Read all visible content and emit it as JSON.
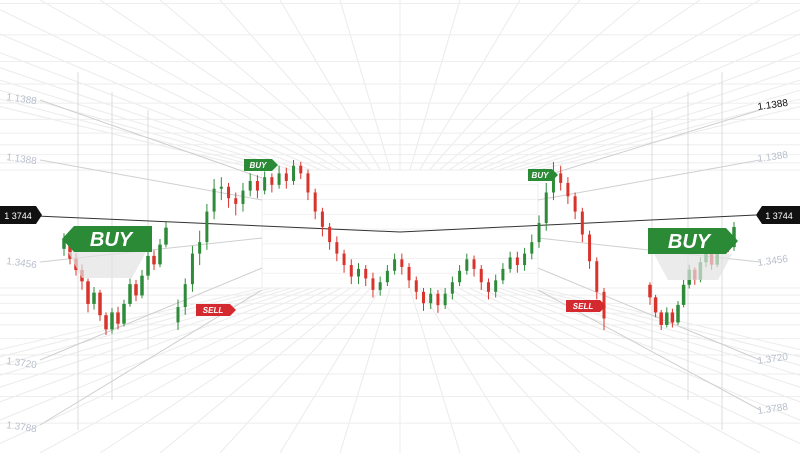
{
  "chart_data": {
    "type": "candlestick",
    "price_labels_left": [
      "1.1388",
      "1.1388",
      "1.3456",
      "1.3720",
      "1.3788"
    ],
    "price_labels_right": [
      "1.1388",
      "1.1388",
      "1.3456",
      "1.3720",
      "1.3788"
    ],
    "current_price_label": "1 3744",
    "colors": {
      "up": "#2e8b3a",
      "down": "#d8342c",
      "buy": "#2a8a36",
      "sell": "#d42a2f",
      "grid": "#e6e6e6",
      "tag": "#111111"
    },
    "signals": [
      {
        "type": "BUY",
        "size": "large",
        "side": "left"
      },
      {
        "type": "BUY",
        "size": "small",
        "side": "center-left"
      },
      {
        "type": "SELL",
        "size": "small",
        "side": "center-left"
      },
      {
        "type": "BUY",
        "size": "small",
        "side": "center-right"
      },
      {
        "type": "SELL",
        "size": "small",
        "side": "center-right"
      },
      {
        "type": "BUY",
        "size": "large",
        "side": "right"
      }
    ],
    "series_mid": [
      [
        1.31,
        1.318,
        1.306,
        1.322
      ],
      [
        1.318,
        1.33,
        1.314,
        1.333
      ],
      [
        1.33,
        1.346,
        1.326,
        1.35
      ],
      [
        1.346,
        1.352,
        1.34,
        1.358
      ],
      [
        1.352,
        1.368,
        1.348,
        1.372
      ],
      [
        1.368,
        1.38,
        1.364,
        1.385
      ],
      [
        1.38,
        1.381,
        1.374,
        1.386
      ],
      [
        1.381,
        1.375,
        1.37,
        1.383
      ],
      [
        1.375,
        1.372,
        1.366,
        1.378
      ],
      [
        1.372,
        1.379,
        1.368,
        1.383
      ],
      [
        1.379,
        1.384,
        1.376,
        1.388
      ],
      [
        1.384,
        1.379,
        1.375,
        1.387
      ],
      [
        1.379,
        1.386,
        1.377,
        1.389
      ],
      [
        1.386,
        1.382,
        1.378,
        1.388
      ],
      [
        1.382,
        1.388,
        1.38,
        1.392
      ],
      [
        1.388,
        1.384,
        1.38,
        1.391
      ],
      [
        1.384,
        1.392,
        1.382,
        1.395
      ],
      [
        1.392,
        1.388,
        1.385,
        1.394
      ],
      [
        1.388,
        1.378,
        1.374,
        1.39
      ],
      [
        1.378,
        1.368,
        1.364,
        1.38
      ],
      [
        1.368,
        1.36,
        1.355,
        1.37
      ],
      [
        1.36,
        1.352,
        1.348,
        1.362
      ],
      [
        1.352,
        1.346,
        1.342,
        1.355
      ],
      [
        1.346,
        1.34,
        1.336,
        1.348
      ],
      [
        1.34,
        1.334,
        1.33,
        1.343
      ],
      [
        1.334,
        1.338,
        1.33,
        1.341
      ],
      [
        1.338,
        1.333,
        1.329,
        1.34
      ],
      [
        1.333,
        1.327,
        1.323,
        1.336
      ],
      [
        1.327,
        1.331,
        1.324,
        1.334
      ],
      [
        1.331,
        1.337,
        1.329,
        1.34
      ],
      [
        1.337,
        1.343,
        1.335,
        1.346
      ],
      [
        1.343,
        1.339,
        1.335,
        1.346
      ],
      [
        1.339,
        1.332,
        1.328,
        1.341
      ],
      [
        1.332,
        1.326,
        1.322,
        1.334
      ],
      [
        1.326,
        1.32,
        1.316,
        1.328
      ],
      [
        1.32,
        1.325,
        1.317,
        1.328
      ],
      [
        1.325,
        1.319,
        1.315,
        1.327
      ],
      [
        1.319,
        1.325,
        1.317,
        1.328
      ],
      [
        1.325,
        1.331,
        1.322,
        1.334
      ],
      [
        1.331,
        1.337,
        1.329,
        1.34
      ],
      [
        1.337,
        1.343,
        1.335,
        1.346
      ],
      [
        1.343,
        1.338,
        1.334,
        1.345
      ],
      [
        1.338,
        1.331,
        1.327,
        1.34
      ],
      [
        1.331,
        1.326,
        1.322,
        1.333
      ],
      [
        1.326,
        1.332,
        1.323,
        1.335
      ],
      [
        1.332,
        1.338,
        1.33,
        1.341
      ],
      [
        1.338,
        1.344,
        1.336,
        1.347
      ],
      [
        1.344,
        1.34,
        1.336,
        1.347
      ],
      [
        1.34,
        1.346,
        1.337,
        1.349
      ],
      [
        1.346,
        1.352,
        1.343,
        1.356
      ],
      [
        1.352,
        1.362,
        1.349,
        1.366
      ],
      [
        1.362,
        1.378,
        1.358,
        1.383
      ],
      [
        1.378,
        1.388,
        1.374,
        1.394
      ],
      [
        1.388,
        1.383,
        1.379,
        1.392
      ],
      [
        1.383,
        1.376,
        1.372,
        1.386
      ],
      [
        1.376,
        1.368,
        1.364,
        1.378
      ],
      [
        1.368,
        1.356,
        1.352,
        1.37
      ],
      [
        1.356,
        1.342,
        1.338,
        1.358
      ],
      [
        1.342,
        1.326,
        1.322,
        1.344
      ],
      [
        1.326,
        1.312,
        1.306,
        1.328
      ]
    ],
    "series_left": [
      [
        1.345,
        1.352,
        1.34,
        1.356
      ],
      [
        1.352,
        1.338,
        1.334,
        1.354
      ],
      [
        1.338,
        1.33,
        1.326,
        1.342
      ],
      [
        1.33,
        1.322,
        1.316,
        1.334
      ],
      [
        1.322,
        1.306,
        1.3,
        1.324
      ],
      [
        1.306,
        1.314,
        1.302,
        1.318
      ],
      [
        1.314,
        1.298,
        1.294,
        1.316
      ],
      [
        1.298,
        1.288,
        1.284,
        1.3
      ],
      [
        1.288,
        1.3,
        1.285,
        1.303
      ],
      [
        1.3,
        1.292,
        1.288,
        1.304
      ],
      [
        1.292,
        1.306,
        1.29,
        1.309
      ],
      [
        1.306,
        1.32,
        1.304,
        1.324
      ],
      [
        1.32,
        1.312,
        1.308,
        1.323
      ],
      [
        1.312,
        1.326,
        1.31,
        1.33
      ],
      [
        1.326,
        1.34,
        1.323,
        1.344
      ],
      [
        1.34,
        1.334,
        1.33,
        1.344
      ],
      [
        1.334,
        1.348,
        1.332,
        1.352
      ],
      [
        1.348,
        1.36,
        1.346,
        1.364
      ]
    ],
    "series_right": [
      [
        1.318,
        1.308,
        1.302,
        1.32
      ],
      [
        1.308,
        1.296,
        1.292,
        1.31
      ],
      [
        1.296,
        1.286,
        1.282,
        1.298
      ],
      [
        1.286,
        1.296,
        1.284,
        1.3
      ],
      [
        1.296,
        1.288,
        1.284,
        1.299
      ],
      [
        1.288,
        1.302,
        1.286,
        1.305
      ],
      [
        1.302,
        1.318,
        1.3,
        1.322
      ],
      [
        1.318,
        1.33,
        1.315,
        1.334
      ],
      [
        1.33,
        1.322,
        1.318,
        1.332
      ],
      [
        1.322,
        1.336,
        1.32,
        1.34
      ],
      [
        1.336,
        1.344,
        1.332,
        1.348
      ],
      [
        1.344,
        1.334,
        1.33,
        1.347
      ],
      [
        1.334,
        1.35,
        1.332,
        1.354
      ],
      [
        1.35,
        1.358,
        1.346,
        1.362
      ],
      [
        1.358,
        1.348,
        1.344,
        1.36
      ],
      [
        1.348,
        1.364,
        1.345,
        1.368
      ]
    ]
  }
}
